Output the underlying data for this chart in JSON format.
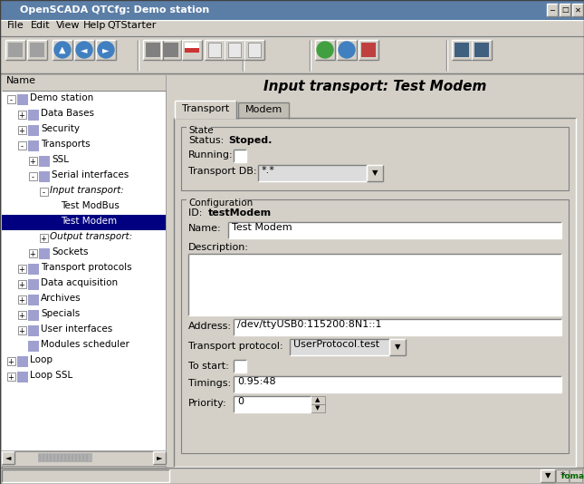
{
  "title_bar": "OpenSCADA QTCfg: Demo station",
  "menu_items": [
    "File",
    "Edit",
    "View",
    "Help",
    "QTStarter"
  ],
  "panel_header": "Name",
  "main_title": "Input transport: Test Modem",
  "tabs": [
    "Transport",
    "Modem"
  ],
  "status_value": "Stoped.",
  "transport_db_value": "*.*",
  "id_value": "testModem",
  "name_value": "Test Modem",
  "address_value": "/dev/ttyUSB0:115200:8N1::1",
  "transport_proto_value": "UserProtocol.test",
  "timings_value": "0.95:48",
  "priority_value": "0",
  "bg_color": "#c0c0c0",
  "titlebar_color": "#5b7ea6",
  "titlebar_text_color": "#ffffff",
  "panel_bg": "#d4d0c8",
  "tree_bg": "#ffffff",
  "tree_selected_bg": "#000080",
  "tree_selected_fg": "#ffffff",
  "input_bg": "#ffffff",
  "input_bg2": "#dcdcdc",
  "text_color": "#000000",
  "group_border": "#808080",
  "tab_active_bg": "#d4d0c8",
  "tab_inactive_bg": "#c0bdb4",
  "content_bg": "#b8b4ac"
}
